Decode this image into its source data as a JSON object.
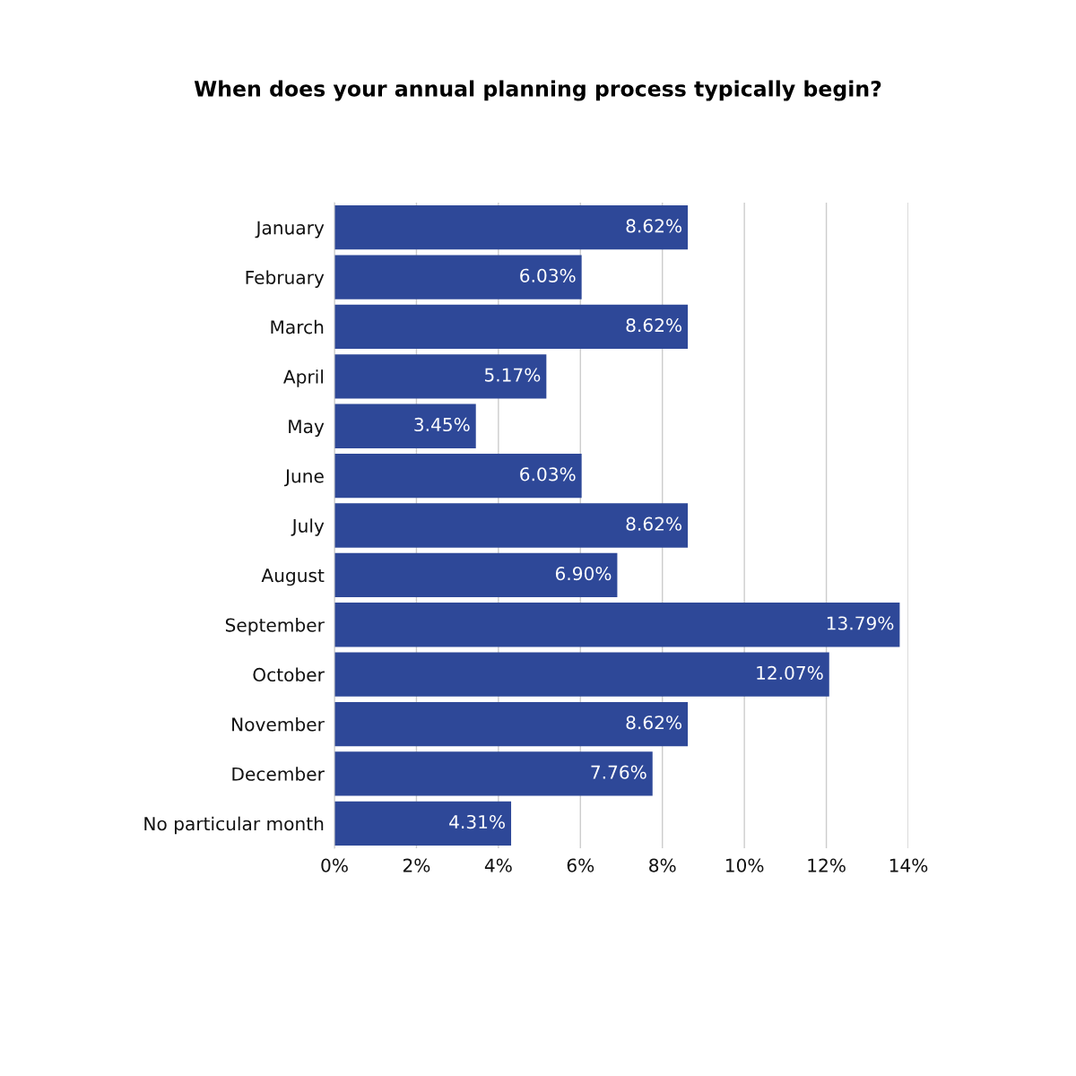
{
  "chart_data": {
    "type": "bar",
    "orientation": "horizontal",
    "title": "When does your annual planning process typically begin?",
    "categories": [
      "January",
      "February",
      "March",
      "April",
      "May",
      "June",
      "July",
      "August",
      "September",
      "October",
      "November",
      "December",
      "No particular month"
    ],
    "values": [
      8.62,
      6.03,
      8.62,
      5.17,
      3.45,
      6.03,
      8.62,
      6.9,
      13.79,
      12.07,
      8.62,
      7.76,
      4.31
    ],
    "value_labels": [
      "8.62%",
      "6.03%",
      "8.62%",
      "5.17%",
      "3.45%",
      "6.03%",
      "8.62%",
      "6.90%",
      "13.79%",
      "12.07%",
      "8.62%",
      "7.76%",
      "4.31%"
    ],
    "color": "#2e4898",
    "xlim": [
      0,
      14
    ],
    "xticks": [
      {
        "value": 0,
        "label": "0%"
      },
      {
        "value": 2,
        "label": "2%"
      },
      {
        "value": 4,
        "label": "4%"
      },
      {
        "value": 6,
        "label": "6%"
      },
      {
        "value": 8,
        "label": "8%"
      },
      {
        "value": 10,
        "label": "10%"
      },
      {
        "value": 12,
        "label": "12%"
      },
      {
        "value": 14,
        "label": "14%"
      }
    ],
    "grid": "x"
  }
}
